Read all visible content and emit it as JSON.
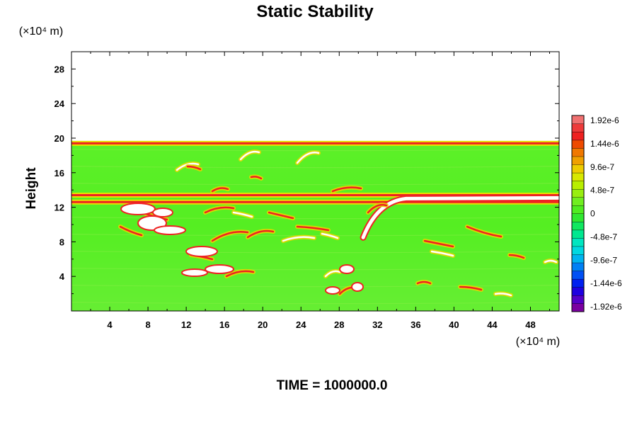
{
  "chart_data": {
    "type": "heatmap",
    "title": "Static Stability",
    "ylabel": "Height",
    "x_unit": "(×10⁴ m)",
    "y_unit": "(×10⁴ m)",
    "xlim": [
      0,
      51
    ],
    "ylim": [
      0,
      30
    ],
    "x_ticks": [
      "4",
      "8",
      "12",
      "16",
      "20",
      "24",
      "28",
      "32",
      "36",
      "40",
      "44",
      "48"
    ],
    "y_ticks": [
      "4",
      "8",
      "12",
      "16",
      "20",
      "24",
      "28"
    ],
    "data_top": 19.7,
    "colorbar": {
      "labels": [
        "1.92e-6",
        "1.44e-6",
        "9.6e-7",
        "4.8e-7",
        "0",
        "-4.8e-7",
        "-9.6e-7",
        "-1.44e-6",
        "-1.92e-6"
      ],
      "min": -1.92e-06,
      "max": 1.92e-06
    },
    "features": [
      {
        "kind": "band",
        "y": 13.4,
        "x0": 0,
        "x1": 51
      },
      {
        "kind": "band",
        "y": 12.6,
        "x0": 0,
        "x1": 51
      },
      {
        "kind": "band",
        "y": 19.4,
        "x0": 0,
        "x1": 51
      },
      {
        "kind": "crest",
        "x0": 30.5,
        "y0": 8.5,
        "x1": 35,
        "y1": 13
      }
    ],
    "time_label": "TIME = 1000000.0"
  }
}
